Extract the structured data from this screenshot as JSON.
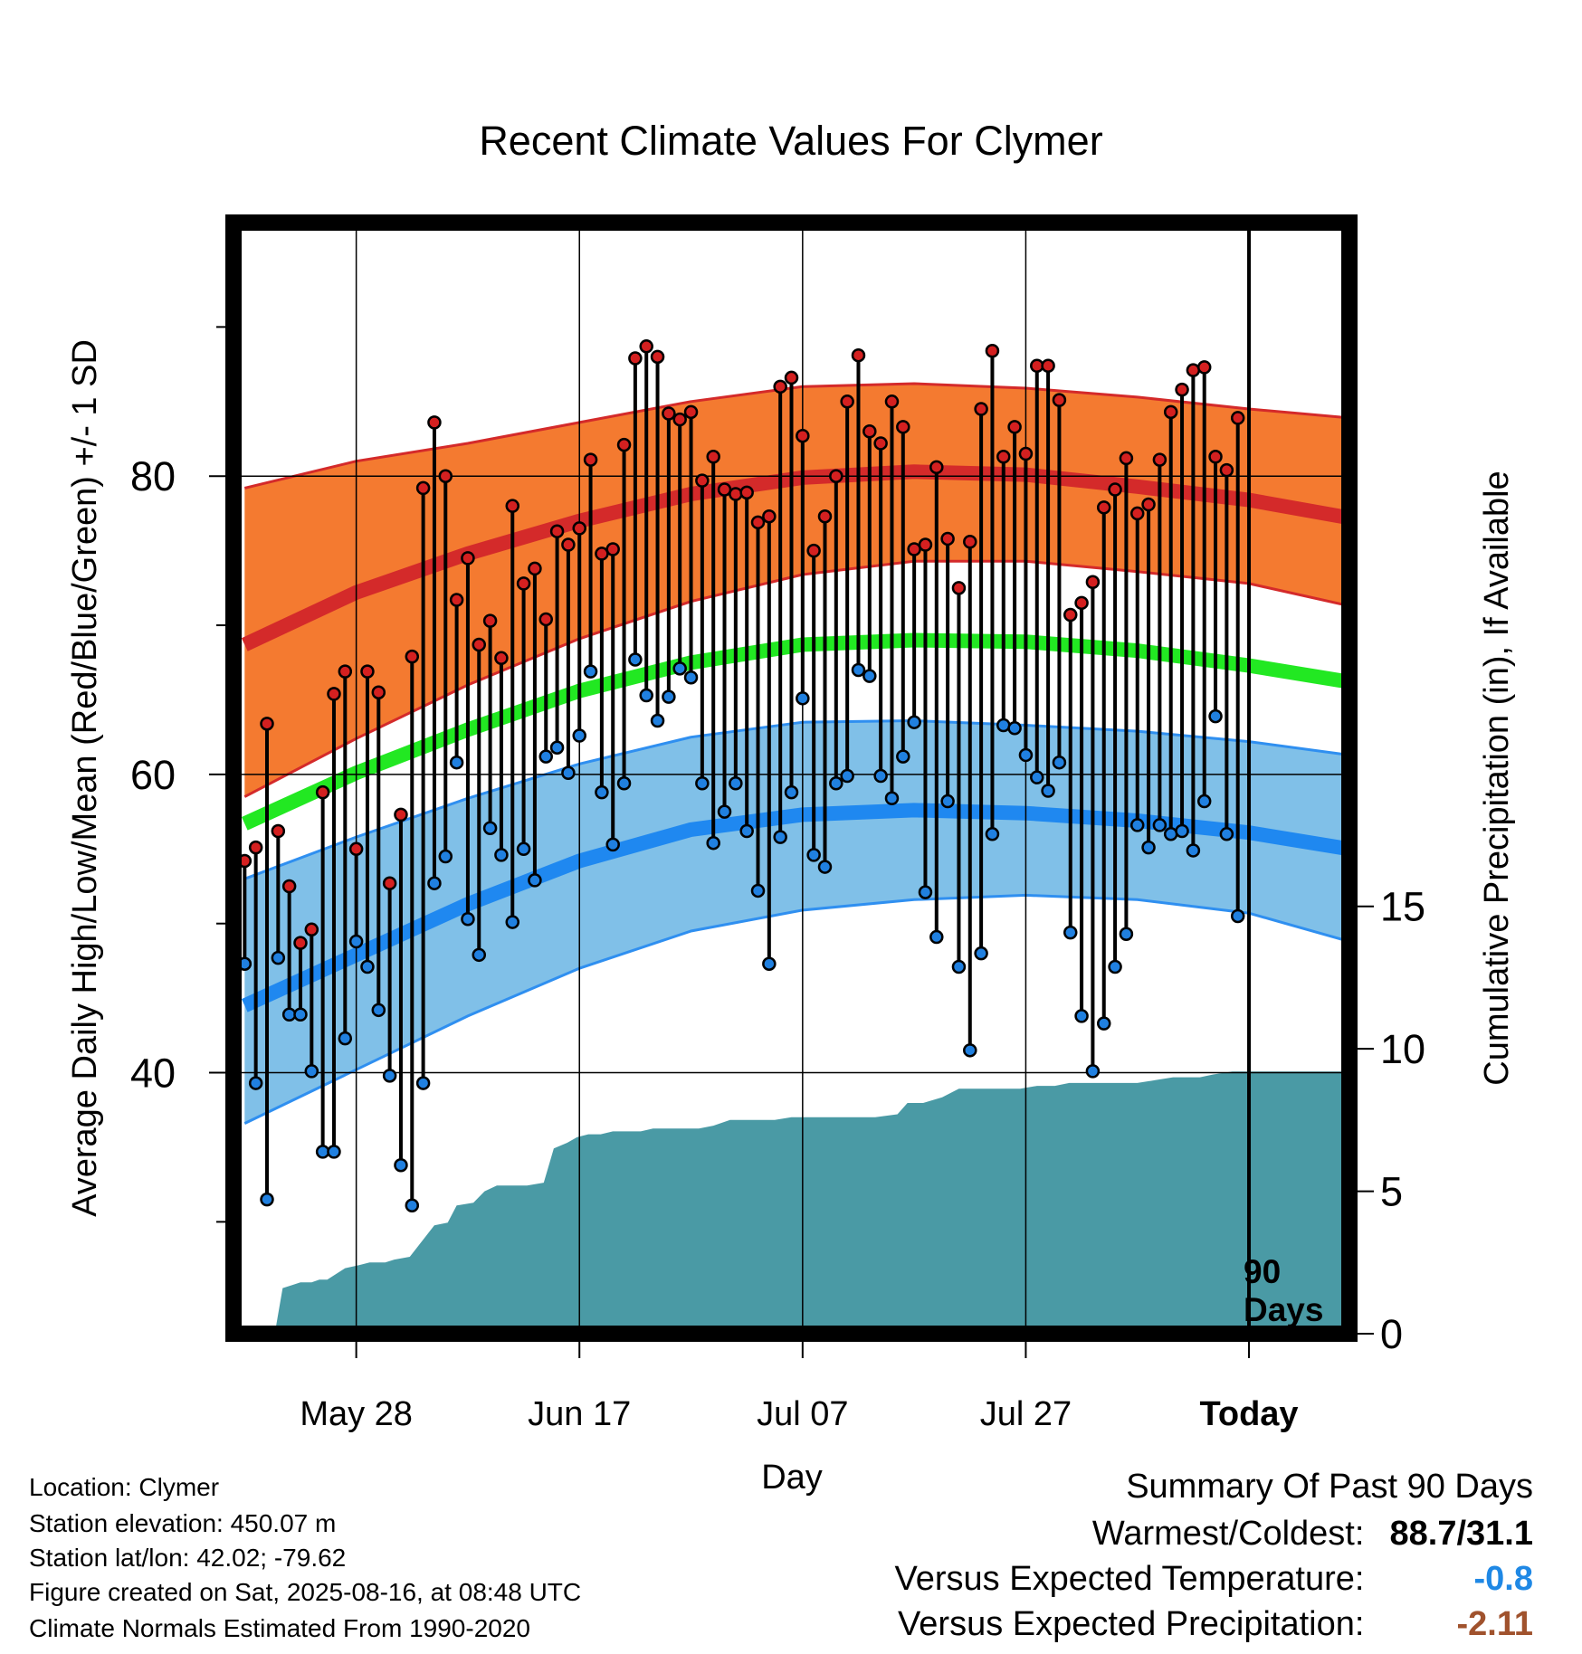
{
  "page": {
    "title": "Recent Climate Values For Clymer"
  },
  "metadata": {
    "location": "Location: Clymer",
    "elevation": "Station elevation: 450.07 m",
    "latlon": "Station lat/lon: 42.02; -79.62",
    "created": "Figure created on Sat, 2025-08-16, at 08:48 UTC",
    "normals": "Climate Normals Estimated From 1990-2020"
  },
  "summary": {
    "heading": "Summary Of Past 90 Days",
    "warm_cold_label": "Warmest/Coldest:",
    "warm_cold_value": "88.7/31.1",
    "temp_label": "Versus Expected Temperature:",
    "temp_value": "-0.8",
    "temp_color": "#1f88e5",
    "precip_label": "Versus Expected Precipitation:",
    "precip_value": "-2.11",
    "precip_color": "#a0522d"
  },
  "chart_data": {
    "type": "line",
    "xlabel": "Day",
    "ylabel": "Average Daily High/Low/Mean (Red/Blue/Green) +/- 1 SD",
    "y2label": "Cumulative Precipitation (in), If Available",
    "x_ticks": [
      {
        "day": 10,
        "label": "May 28"
      },
      {
        "day": 30,
        "label": "Jun 17"
      },
      {
        "day": 50,
        "label": "Jul 07"
      },
      {
        "day": 70,
        "label": "Jul 27"
      },
      {
        "day": 90,
        "label": "Today"
      }
    ],
    "xlim": [
      -1,
      99
    ],
    "ylim": [
      22.5,
      97
    ],
    "y_ticks": [
      40,
      60,
      80
    ],
    "y_minor_ticks": [
      30,
      50,
      70,
      90
    ],
    "y2lim": [
      0,
      39
    ],
    "y2_ticks": [
      0,
      5,
      10,
      15
    ],
    "grid": true,
    "today_day": 90,
    "today_label_line1": "90",
    "today_label_line2": "Days",
    "colors": {
      "high_band": "#f47a30",
      "high_edge": "#d42a2a",
      "high_mean": "#d42a2a",
      "low_band": "#80c0e8",
      "low_edge": "#2f8ff0",
      "low_mean": "#1f88f0",
      "mean": "#22e822",
      "precip": "#4a9aa5",
      "high_dot": "#d42020",
      "low_dot": "#2080e0"
    },
    "normal_high_mean": {
      "days": [
        0,
        10,
        20,
        30,
        40,
        50,
        60,
        70,
        80,
        90,
        99
      ],
      "values": [
        68.7,
        72.2,
        74.8,
        77.0,
        78.8,
        79.9,
        80.3,
        80.1,
        79.3,
        78.4,
        77.2
      ]
    },
    "normal_high_upper": {
      "days": [
        0,
        10,
        20,
        30,
        40,
        50,
        60,
        70,
        80,
        90,
        99
      ],
      "values": [
        79.2,
        81.0,
        82.2,
        83.6,
        85.0,
        86.0,
        86.2,
        85.9,
        85.3,
        84.5,
        83.9
      ]
    },
    "normal_high_lower": {
      "days": [
        0,
        10,
        20,
        30,
        40,
        50,
        60,
        70,
        80,
        90,
        99
      ],
      "values": [
        58.5,
        62.4,
        66.0,
        69.1,
        71.6,
        73.4,
        74.3,
        74.3,
        73.6,
        72.8,
        71.3
      ]
    },
    "normal_low_mean": {
      "days": [
        0,
        10,
        20,
        30,
        40,
        50,
        60,
        70,
        80,
        90,
        99
      ],
      "values": [
        44.5,
        47.9,
        51.3,
        54.2,
        56.3,
        57.3,
        57.6,
        57.4,
        56.9,
        56.1,
        55.0
      ]
    },
    "normal_low_upper": {
      "days": [
        0,
        10,
        20,
        30,
        40,
        50,
        60,
        70,
        80,
        90,
        99
      ],
      "values": [
        53.0,
        55.8,
        58.4,
        60.7,
        62.5,
        63.5,
        63.6,
        63.3,
        62.9,
        62.2,
        61.3
      ]
    },
    "normal_low_lower": {
      "days": [
        0,
        10,
        20,
        30,
        40,
        50,
        60,
        70,
        80,
        90,
        99
      ],
      "values": [
        36.6,
        40.2,
        43.8,
        47.0,
        49.5,
        50.9,
        51.6,
        51.9,
        51.6,
        50.7,
        48.8
      ]
    },
    "normal_mean": {
      "days": [
        0,
        10,
        20,
        30,
        40,
        50,
        60,
        70,
        80,
        90,
        99
      ],
      "values": [
        56.7,
        60.1,
        63.0,
        65.6,
        67.5,
        68.7,
        69.0,
        68.9,
        68.3,
        67.3,
        66.2
      ]
    },
    "daily_high": [
      54.2,
      55.1,
      63.4,
      56.2,
      52.5,
      48.7,
      49.6,
      58.8,
      65.4,
      66.9,
      55.0,
      66.9,
      65.5,
      52.7,
      57.3,
      67.9,
      79.2,
      83.6,
      80.0,
      71.7,
      74.5,
      68.7,
      70.3,
      67.8,
      78.0,
      72.8,
      73.8,
      70.4,
      76.3,
      75.4,
      76.5,
      81.1,
      74.8,
      75.1,
      82.1,
      87.9,
      88.7,
      88.0,
      84.2,
      83.8,
      84.3,
      79.7,
      81.3,
      79.1,
      78.8,
      78.9,
      76.9,
      77.3,
      86.0,
      86.6,
      82.7,
      75.0,
      77.3,
      80.0,
      85.0,
      88.1,
      83.0,
      82.2,
      85.0,
      83.3,
      75.1,
      75.4,
      80.6,
      75.8,
      72.5,
      75.6,
      84.5,
      88.4,
      81.3,
      83.3,
      81.5,
      87.4,
      87.4,
      85.1,
      70.7,
      71.5,
      72.9,
      77.9,
      79.1,
      81.2,
      77.5,
      78.1,
      81.1,
      84.3,
      85.8,
      87.1,
      87.3,
      81.3,
      80.4,
      83.9
    ],
    "daily_low": [
      47.3,
      39.3,
      31.5,
      47.7,
      43.9,
      43.9,
      40.1,
      34.7,
      34.7,
      42.3,
      48.8,
      47.1,
      44.2,
      39.8,
      33.8,
      31.1,
      39.3,
      52.7,
      54.5,
      60.8,
      50.3,
      47.9,
      56.4,
      54.6,
      50.1,
      55.0,
      52.9,
      61.2,
      61.8,
      60.1,
      62.6,
      66.9,
      58.8,
      55.3,
      59.4,
      67.7,
      65.3,
      63.6,
      65.2,
      67.1,
      66.5,
      59.4,
      55.4,
      57.5,
      59.4,
      56.2,
      52.2,
      47.3,
      55.8,
      58.8,
      65.1,
      54.6,
      53.8,
      59.4,
      59.9,
      67.0,
      66.6,
      59.9,
      58.4,
      61.2,
      63.5,
      52.1,
      49.1,
      58.2,
      47.1,
      41.5,
      48.0,
      56.0,
      63.3,
      63.1,
      61.3,
      59.8,
      58.9,
      60.8,
      49.4,
      43.8,
      40.1,
      43.3,
      47.1,
      49.3,
      56.6,
      55.1,
      56.6,
      56.0,
      56.2,
      54.9,
      58.2,
      63.9,
      56.0,
      50.5
    ],
    "cumulative_precip": {
      "days": [
        2.7,
        3.4,
        4.2,
        5.0,
        6.0,
        6.7,
        7.4,
        9.0,
        10.2,
        11.2,
        11.8,
        12.6,
        13.4,
        14.8,
        17.0,
        18.2,
        19.0,
        20.5,
        21.5,
        22.6,
        24.0,
        25.3,
        26.8,
        27.7,
        28.9,
        29.8,
        30.8,
        31.9,
        33.0,
        34.0,
        35.5,
        36.6,
        38.2,
        39.5,
        40.7,
        42.0,
        43.5,
        44.8,
        46.0,
        47.5,
        49.0,
        50.5,
        52.0,
        53.5,
        55.0,
        56.5,
        58.5,
        59.4,
        60.8,
        62.5,
        64.0,
        65.6,
        67.0,
        68.3,
        69.5,
        71.0,
        72.6,
        73.9,
        75.2,
        76.8,
        78.5,
        80.0,
        81.6,
        83.2,
        84.5,
        85.6,
        86.8,
        88.5,
        90.0,
        92.0,
        94.0,
        96.0,
        99.0
      ],
      "values": [
        0.0,
        1.6,
        1.7,
        1.8,
        1.8,
        1.9,
        1.9,
        2.3,
        2.4,
        2.5,
        2.5,
        2.5,
        2.6,
        2.7,
        3.8,
        3.9,
        4.5,
        4.6,
        5.0,
        5.2,
        5.2,
        5.2,
        5.3,
        6.5,
        6.7,
        6.9,
        7.0,
        7.0,
        7.1,
        7.1,
        7.1,
        7.2,
        7.2,
        7.2,
        7.2,
        7.3,
        7.5,
        7.5,
        7.5,
        7.5,
        7.6,
        7.6,
        7.6,
        7.6,
        7.6,
        7.6,
        7.7,
        8.1,
        8.1,
        8.3,
        8.6,
        8.6,
        8.6,
        8.6,
        8.6,
        8.7,
        8.7,
        8.8,
        8.8,
        8.8,
        8.8,
        8.8,
        8.9,
        9.0,
        9.0,
        9.0,
        9.1,
        9.2,
        9.2,
        9.2,
        9.2,
        9.2,
        9.2
      ]
    }
  }
}
